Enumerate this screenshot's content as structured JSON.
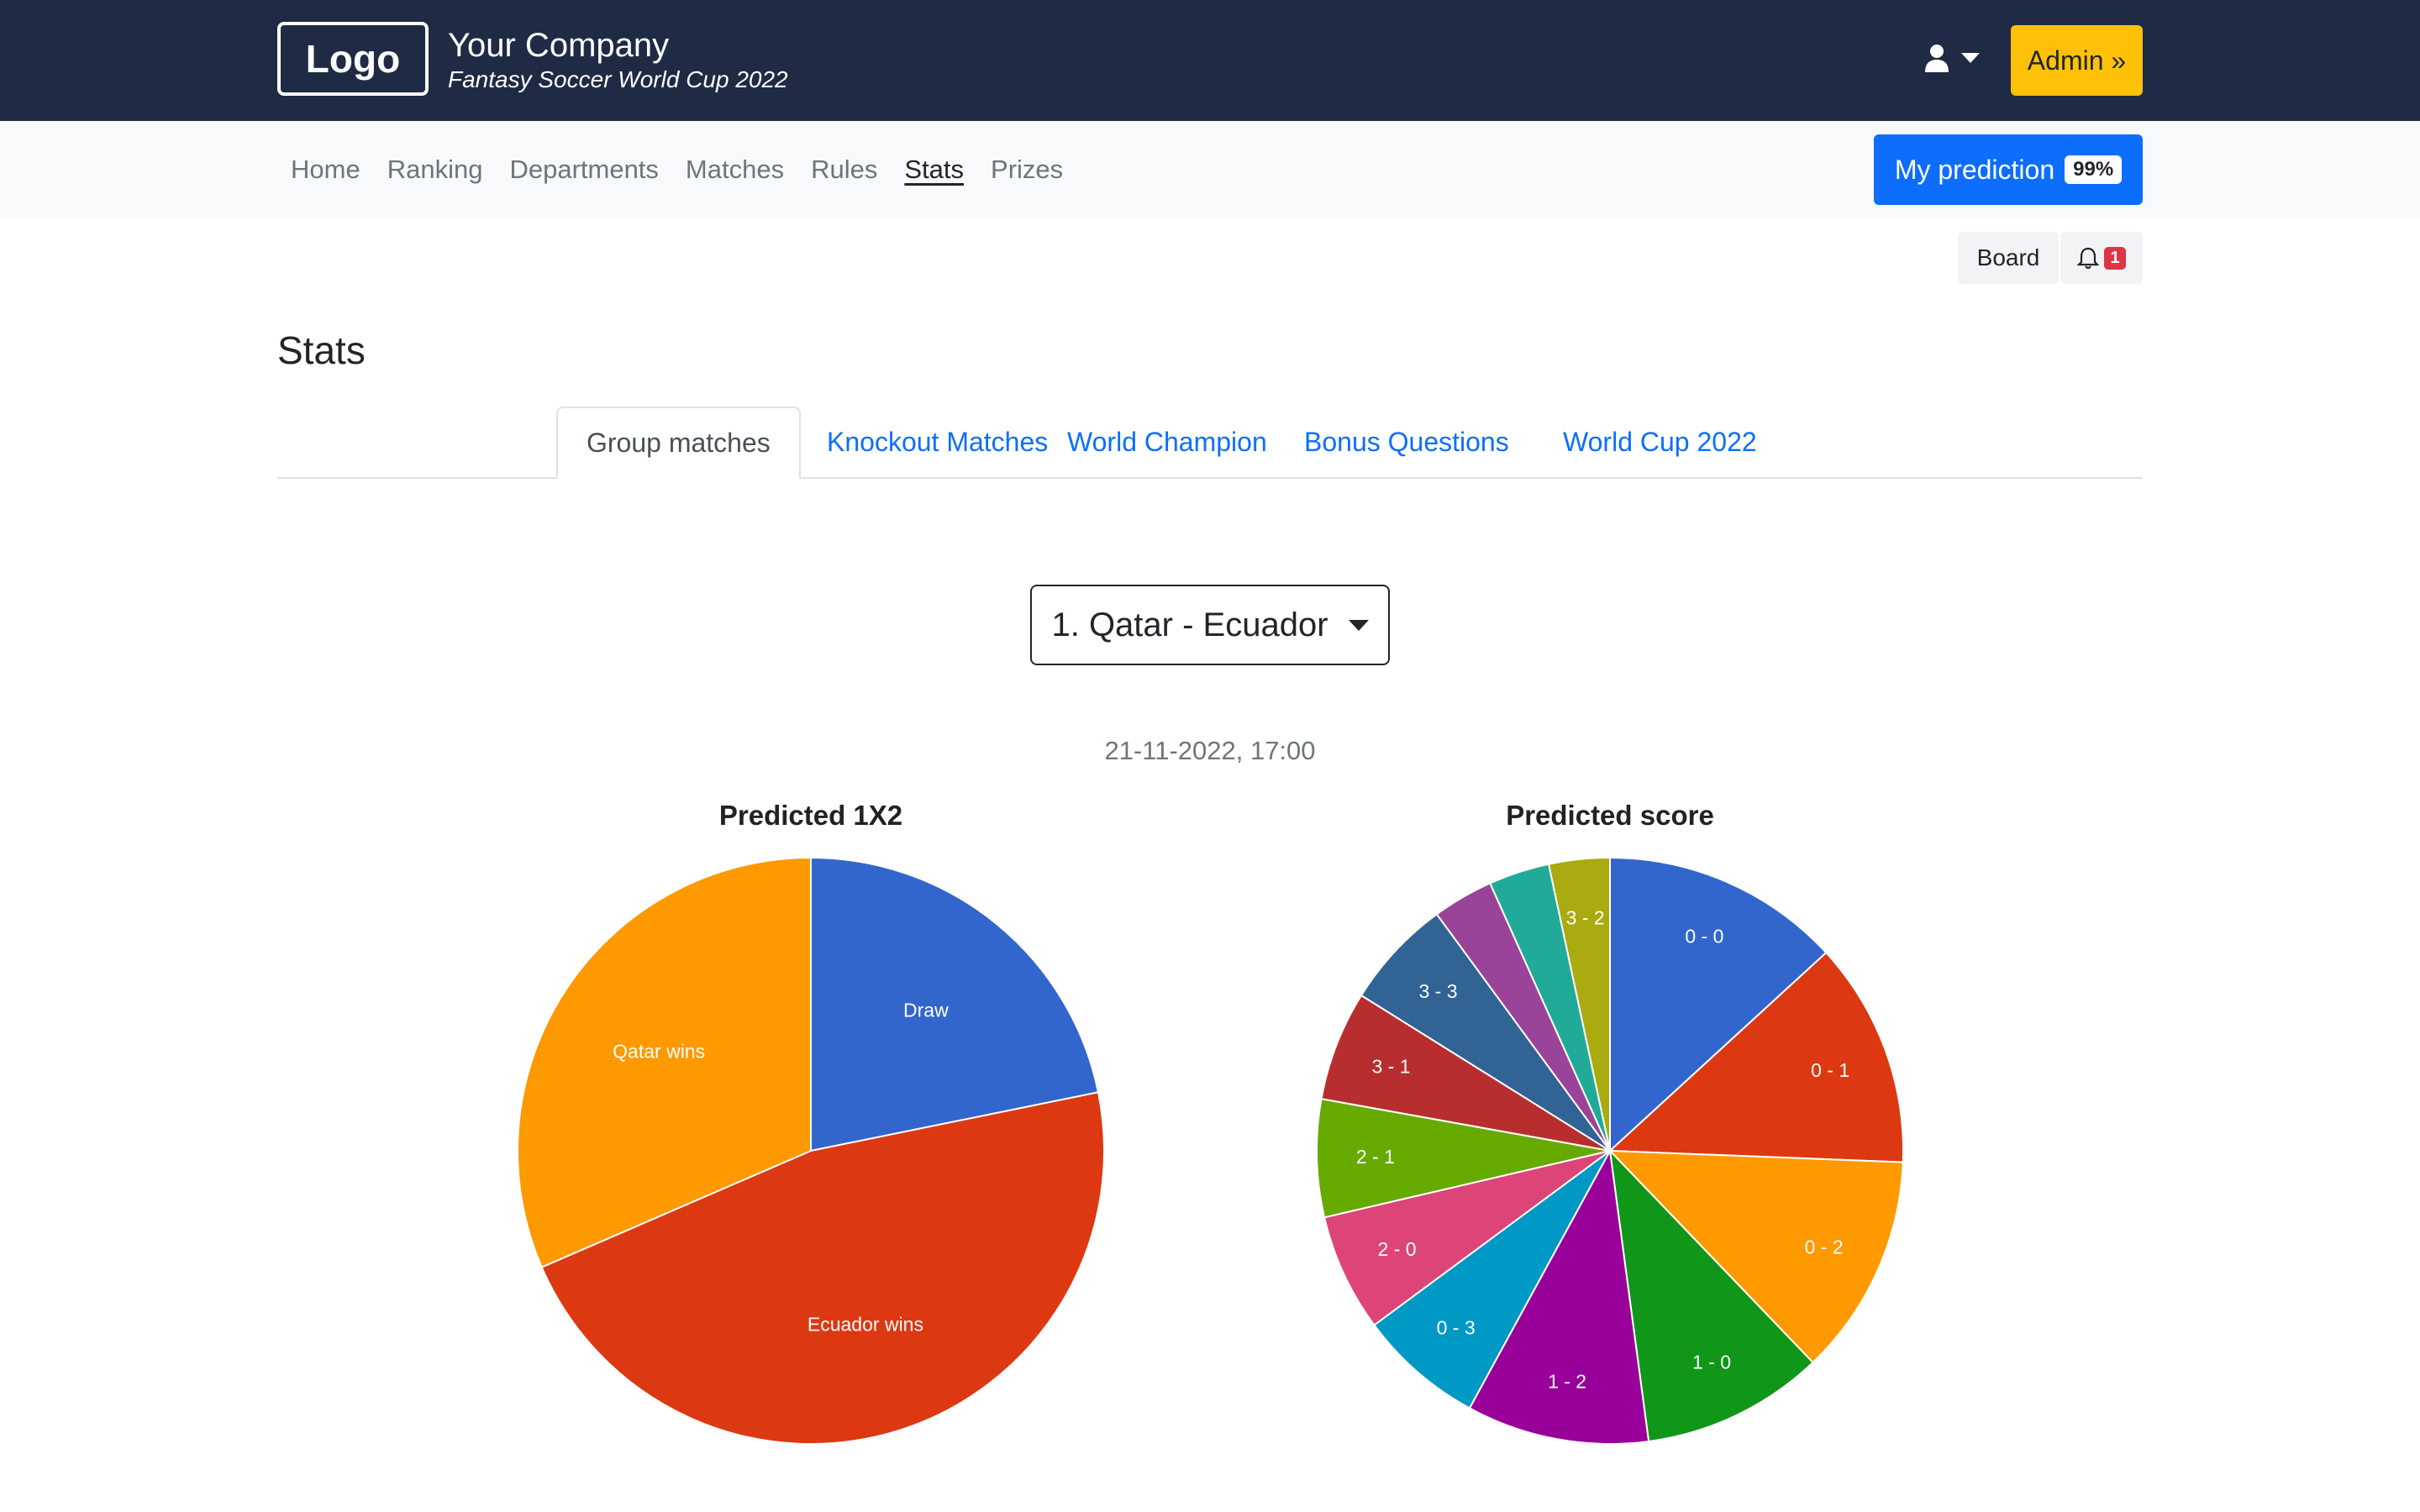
{
  "header": {
    "logo": "Logo",
    "company": "Your Company",
    "subtitle": "Fantasy Soccer World Cup 2022",
    "admin_label": "Admin »"
  },
  "nav": {
    "items": [
      "Home",
      "Ranking",
      "Departments",
      "Matches",
      "Rules",
      "Stats",
      "Prizes"
    ],
    "active": "Stats",
    "prediction_label": "My prediction",
    "prediction_badge": "99%"
  },
  "toolbar": {
    "board_label": "Board",
    "notifications": "1"
  },
  "page": {
    "title": "Stats"
  },
  "tabs": [
    "Group matches",
    "Knockout Matches",
    "World Champion",
    "Bonus Questions",
    "World Cup 2022"
  ],
  "active_tab": "Group matches",
  "match_select": {
    "value": "1. Qatar - Ecuador"
  },
  "match_date": "21-11-2022, 17:00",
  "chart_data": [
    {
      "type": "pie",
      "title": "Predicted 1X2",
      "categories": [
        "Draw",
        "Ecuador wins",
        "Qatar wins"
      ],
      "values": [
        21.8,
        46.7,
        31.5
      ],
      "colors": [
        "#3366cc",
        "#dc3912",
        "#ff9900"
      ]
    },
    {
      "type": "pie",
      "title": "Predicted score",
      "categories": [
        "0 - 0",
        "0 - 1",
        "0 - 2",
        "1 - 0",
        "1 - 2",
        "0 - 3",
        "2 - 0",
        "2 - 1",
        "3 - 1",
        "3 - 3",
        "",
        "",
        "3 - 2"
      ],
      "values": [
        12.2,
        11.5,
        11.3,
        9.3,
        9.3,
        6.4,
        6.0,
        6.0,
        5.6,
        5.6,
        3.1,
        3.1,
        3.1
      ],
      "colors": [
        "#3366cc",
        "#dc3912",
        "#ff9900",
        "#109618",
        "#990099",
        "#0099c6",
        "#dd4477",
        "#66aa00",
        "#b82e2e",
        "#316395",
        "#994499",
        "#22aa99",
        "#aaaa11"
      ]
    }
  ]
}
